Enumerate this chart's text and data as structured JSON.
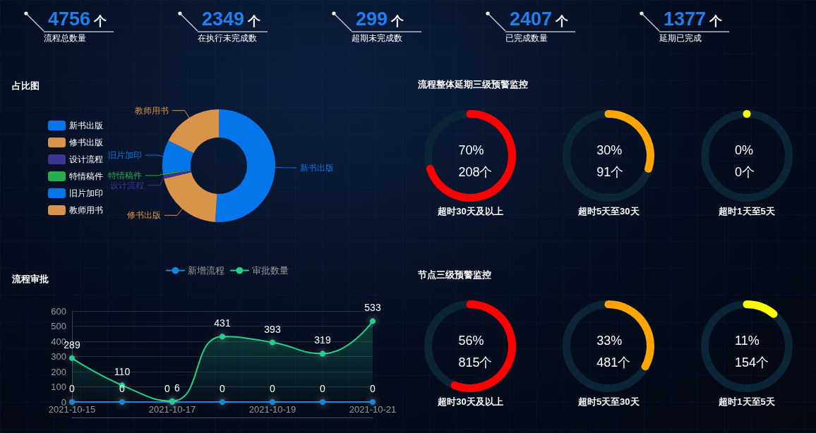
{
  "chart_data": [
    {
      "type": "other",
      "categories": [
        "流程总数量",
        "在执行未完成数",
        "超期未完成数",
        "已完成数量",
        "延期已完成"
      ],
      "values": [
        4756,
        2349,
        299,
        2407,
        1377
      ],
      "value_labels": [
        "4756个",
        "2349个",
        "299个",
        "2407个",
        "1377个"
      ]
    },
    {
      "type": "donut",
      "title": "占比图",
      "categories": [
        "新书出版",
        "修书出版",
        "设计流程",
        "特情稿件",
        "旧片加印",
        "教师用书"
      ],
      "values": [
        51,
        20.3,
        1.1,
        0.4,
        9.6,
        17.6
      ],
      "colors": [
        "#0576ea",
        "#d9934b",
        "#3d3594",
        "#27ae4f",
        "#0576ea",
        "#d9934b"
      ],
      "legend": "left"
    },
    {
      "type": "other",
      "title": "流程整体延期三级预警监控",
      "categories": [
        "超时30天及以上",
        "超时5天至30天",
        "超时1天至5天"
      ],
      "colors": [
        "#ff0000",
        "#ffa500",
        "#ffff00"
      ],
      "series": [
        {
          "values": [
            70,
            30,
            0
          ],
          "value_labels": [
            "70%",
            "30%",
            "0%"
          ]
        },
        {
          "values": [
            208,
            91,
            0
          ],
          "value_labels": [
            "208个",
            "91个",
            "0个"
          ]
        }
      ]
    },
    {
      "type": "line",
      "title": "流程审批",
      "categories": [
        "2021-10-15",
        null,
        "2021-10-17",
        null,
        "2021-10-19",
        null,
        "2021-10-21"
      ],
      "series": [
        {
          "name": "新增流程",
          "color": "#1787da",
          "values": [
            0,
            0,
            0,
            0,
            0,
            0,
            0
          ]
        },
        {
          "name": "审批数量",
          "type": "area",
          "color": "#1fd38a",
          "values": [
            289,
            110,
            6,
            431,
            393,
            319,
            533
          ]
        }
      ],
      "ylim": [
        0,
        600
      ],
      "yticks": [
        0,
        100,
        200,
        300,
        400,
        500,
        600
      ],
      "grid": "y",
      "legend": "top",
      "marker": "circle",
      "line_style": "solid",
      "data_labels": true
    },
    {
      "type": "other",
      "title": "节点三级预警监控",
      "categories": [
        "超时30天及以上",
        "超时5天至30天",
        "超时1天至5天"
      ],
      "colors": [
        "#ff0000",
        "#ffa500",
        "#ffff00"
      ],
      "series": [
        {
          "values": [
            56,
            33,
            11
          ],
          "value_labels": [
            "56%",
            "33%",
            "11%"
          ]
        },
        {
          "values": [
            815,
            481,
            154
          ],
          "value_labels": [
            "815个",
            "481个",
            "154个"
          ]
        }
      ]
    }
  ]
}
